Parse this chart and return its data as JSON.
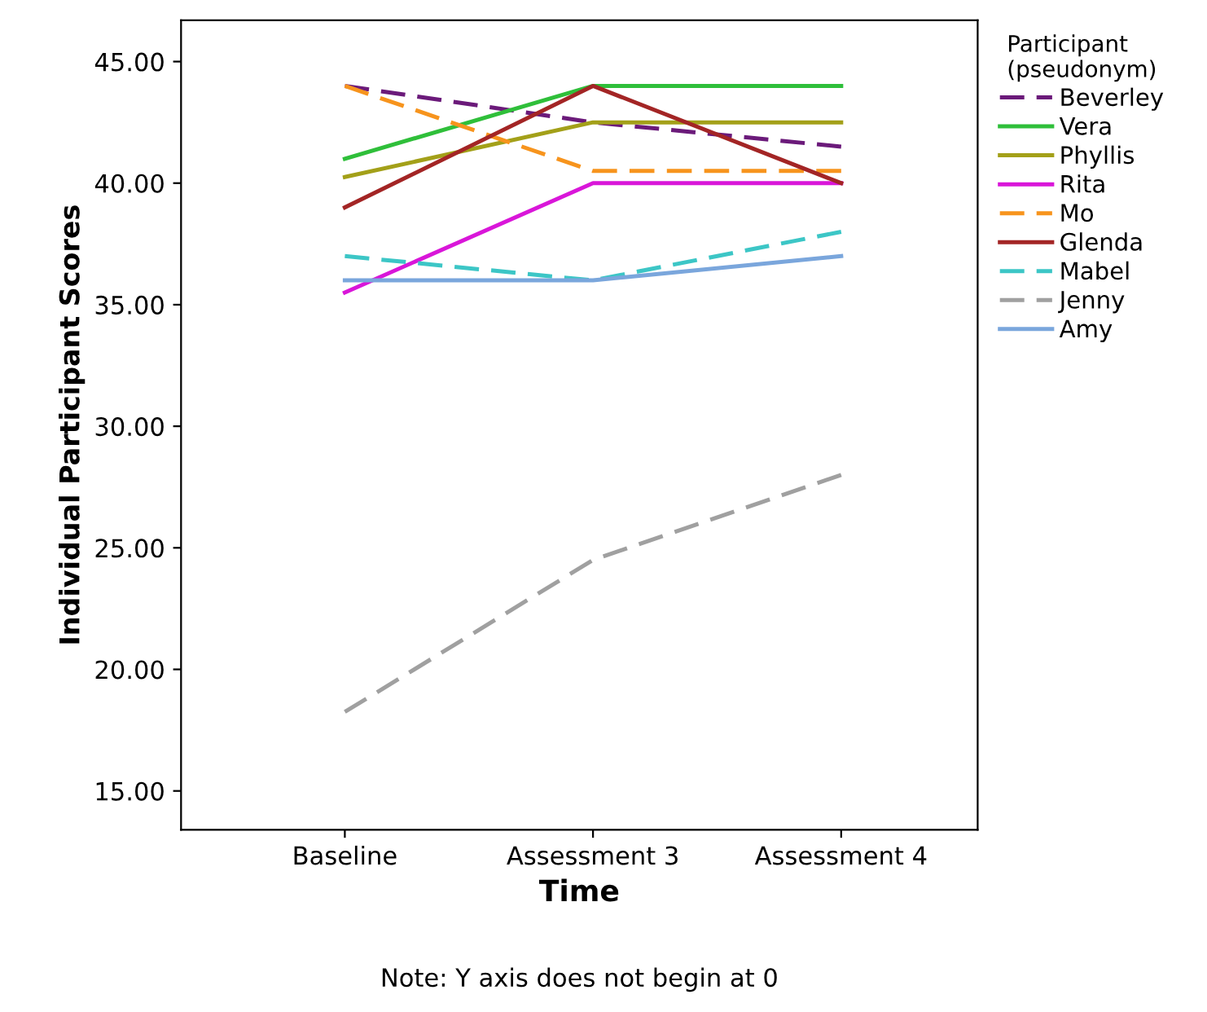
{
  "chart_data": {
    "type": "line",
    "xlabel": "Time",
    "ylabel": "Individual Participant Scores",
    "legend_title": "Participant\n(pseudonym)",
    "categories": [
      "Baseline",
      "Assessment 3",
      "Assessment 4"
    ],
    "series": [
      {
        "name": "Beverley",
        "color": "#6b1a7a",
        "values": [
          44,
          42.5,
          41.5
        ],
        "line_style": "dashed"
      },
      {
        "name": "Vera",
        "color": "#2fbf3a",
        "values": [
          41,
          44,
          44
        ],
        "line_style": "solid"
      },
      {
        "name": "Phyllis",
        "color": "#a3a019",
        "values": [
          40.25,
          42.5,
          42.5
        ],
        "line_style": "solid"
      },
      {
        "name": "Rita",
        "color": "#d916d9",
        "values": [
          35.5,
          40,
          40
        ],
        "line_style": "solid"
      },
      {
        "name": "Mo",
        "color": "#f7941d",
        "values": [
          44,
          40.5,
          40.5
        ],
        "line_style": "dashed"
      },
      {
        "name": "Glenda",
        "color": "#a32525",
        "values": [
          39,
          44,
          40
        ],
        "line_style": "solid"
      },
      {
        "name": "Mabel",
        "color": "#3cc6c6",
        "values": [
          37,
          36,
          38
        ],
        "line_style": "dashed"
      },
      {
        "name": "Jenny",
        "color": "#a0a0a0",
        "values": [
          18.25,
          24.5,
          28
        ],
        "line_style": "dashed"
      },
      {
        "name": "Amy",
        "color": "#7aa6dc",
        "values": [
          36,
          36,
          37
        ],
        "line_style": "solid"
      }
    ],
    "ylim": [
      13.4,
      46.7
    ],
    "yticks": [
      {
        "value": 15,
        "label": "15.00"
      },
      {
        "value": 20,
        "label": "20.00"
      },
      {
        "value": 25,
        "label": "25.00"
      },
      {
        "value": 30,
        "label": "30.00"
      },
      {
        "value": 35,
        "label": "35.00"
      },
      {
        "value": 40,
        "label": "40.00"
      },
      {
        "value": 45,
        "label": "45.00"
      }
    ],
    "grid": false,
    "legend": "right",
    "marker": "none",
    "annotations": [
      "Note: Y axis does not begin at 0"
    ]
  }
}
